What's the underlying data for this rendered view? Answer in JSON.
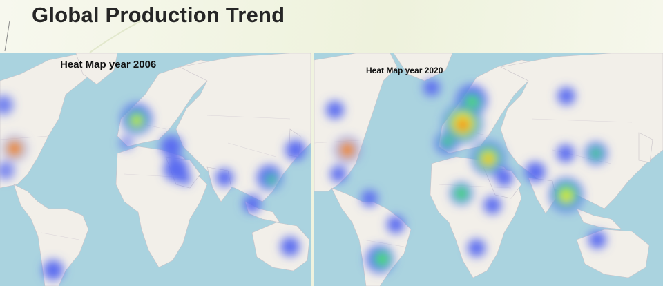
{
  "slide": {
    "title": "Global Production Trend"
  },
  "maps": [
    {
      "caption": "Heat Map year 2006",
      "hotspots": [
        {
          "region": "western-north-america",
          "level": 0.2
        },
        {
          "region": "us-gulf-coast",
          "level": 1.0
        },
        {
          "region": "southern-us-border",
          "level": 0.2
        },
        {
          "region": "western-europe",
          "level": 0.55
        },
        {
          "region": "iberia",
          "level": 0.18
        },
        {
          "region": "eastern-mediterranean",
          "level": 0.25
        },
        {
          "region": "arabian-peninsula",
          "level": 0.25
        },
        {
          "region": "india",
          "level": 0.22
        },
        {
          "region": "southern-china",
          "level": 0.35
        },
        {
          "region": "japan",
          "level": 0.25
        },
        {
          "region": "southeast-asia",
          "level": 0.22
        },
        {
          "region": "southern-south-america",
          "level": 0.2
        },
        {
          "region": "eastern-australia",
          "level": 0.2
        }
      ]
    },
    {
      "caption": "Heat Map year 2020",
      "hotspots": [
        {
          "region": "iceland",
          "level": 0.15
        },
        {
          "region": "western-north-america",
          "level": 0.18
        },
        {
          "region": "us-gulf-coast",
          "level": 1.0
        },
        {
          "region": "mexico",
          "level": 0.18
        },
        {
          "region": "northern-europe",
          "level": 0.45
        },
        {
          "region": "central-europe",
          "level": 0.85
        },
        {
          "region": "western-europe",
          "level": 0.35
        },
        {
          "region": "middle-east",
          "level": 0.75
        },
        {
          "region": "arabian-peninsula",
          "level": 0.3
        },
        {
          "region": "west-africa",
          "level": 0.45
        },
        {
          "region": "east-africa",
          "level": 0.2
        },
        {
          "region": "northern-south-america",
          "level": 0.2
        },
        {
          "region": "brazil",
          "level": 0.18
        },
        {
          "region": "argentina",
          "level": 0.5
        },
        {
          "region": "southern-africa",
          "level": 0.18
        },
        {
          "region": "india",
          "level": 0.25
        },
        {
          "region": "southern-china",
          "level": 0.75
        },
        {
          "region": "korea-japan",
          "level": 0.45
        },
        {
          "region": "china-north",
          "level": 0.18
        },
        {
          "region": "siberia",
          "level": 0.15
        },
        {
          "region": "eastern-australia",
          "level": 0.18
        }
      ]
    }
  ],
  "colors": {
    "ocean": "#aad3df",
    "land": "#f2efe9",
    "heat_low": "#5a6cf0",
    "heat_mid": "#4ce05a",
    "heat_high": "#f5e33a",
    "heat_peak": "#e8220c"
  }
}
